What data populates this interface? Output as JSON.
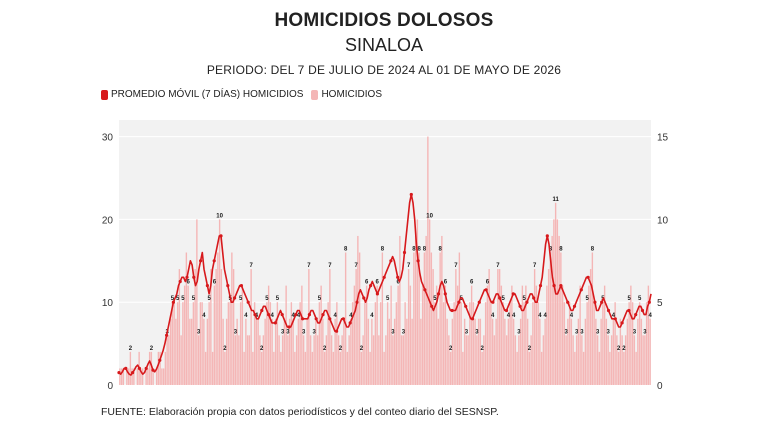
{
  "header": {
    "title": "HOMICIDIOS DOLOSOS",
    "subtitle": "SINALOA",
    "period": "PERIODO: DEL 7 DE JULIO DE 2024 AL 01 DE MAYO DE 2026"
  },
  "legend": {
    "avg_label": "PROMEDIO MÓVIL (7 DÍAS) HOMICIDIOS",
    "daily_label": "HOMICIDIOS"
  },
  "source": "FUENTE: Elaboración propia con datos periodísticos y del conteo diario del SESNSP.",
  "colors": {
    "avg_line": "#d7191c",
    "daily_bars": "#f4b6b6",
    "plot_bg": "#f2f2f2",
    "gridline": "#ffffff"
  },
  "chart_data": {
    "type": "bar",
    "x": {
      "start": "2024-07-07",
      "end": "2026-05-01",
      "ticks_shown": false
    },
    "y_left": {
      "range": [
        0,
        32
      ],
      "ticks": [
        0,
        10,
        20,
        30
      ]
    },
    "y_right": {
      "range": [
        0,
        16
      ],
      "ticks": [
        0,
        5,
        10,
        15
      ]
    },
    "grid": true,
    "legend_position": "top-left",
    "series": [
      {
        "name": "PROMEDIO MÓVIL (7 DÍAS) HOMICIDIOS",
        "type": "line",
        "axis": "left",
        "values": [
          1.5,
          1.3,
          1.6,
          2,
          2,
          1.6,
          1.3,
          1.2,
          1.5,
          1.8,
          2.2,
          2.4,
          2,
          1.6,
          1.3,
          1.5,
          2,
          2.5,
          2.9,
          2.4,
          1.8,
          1.6,
          1.9,
          2.4,
          3,
          3.6,
          4.2,
          5,
          6,
          7,
          8,
          9,
          10,
          10.5,
          11,
          12,
          12.5,
          13,
          13,
          12.5,
          13,
          14,
          15,
          14.5,
          13,
          12,
          12.5,
          14,
          15,
          16,
          14,
          13,
          12,
          11,
          12,
          14,
          15,
          16,
          17,
          18,
          18,
          16,
          14,
          13,
          12,
          11,
          10,
          10,
          10.5,
          11,
          11.5,
          12,
          12,
          11.5,
          11,
          10.5,
          10,
          9.5,
          9,
          9,
          8.5,
          8,
          8,
          8.5,
          9,
          9.5,
          9.5,
          9,
          8.5,
          8,
          7.5,
          7.5,
          7.5,
          8,
          8.5,
          9,
          8.5,
          8,
          7.5,
          7,
          7,
          7,
          7.5,
          8,
          8.5,
          9,
          9,
          8.5,
          8,
          8,
          8,
          8,
          8.5,
          9,
          9,
          8.5,
          8,
          7.5,
          7.5,
          8,
          8.5,
          9,
          9,
          8.5,
          8,
          7.5,
          7,
          6.5,
          6.5,
          7,
          7.5,
          8,
          8,
          7.5,
          7,
          7,
          7.5,
          8,
          8.5,
          9,
          10,
          11,
          11.5,
          11,
          10.5,
          10,
          10.5,
          11.5,
          12,
          12.5,
          12,
          11.5,
          11,
          11.5,
          12,
          12.5,
          13,
          13.5,
          14,
          14.5,
          15,
          15.5,
          15,
          14,
          13,
          12.5,
          13,
          14,
          16,
          18,
          20,
          22,
          23,
          22,
          20,
          17,
          15,
          13.5,
          12.5,
          12,
          11.5,
          11,
          10.5,
          10,
          9.5,
          9,
          9.5,
          10,
          11,
          12,
          12.5,
          12,
          11,
          10,
          9.5,
          9,
          9,
          9,
          9,
          9.5,
          10,
          10.5,
          10.5,
          10,
          9.5,
          9,
          8.5,
          8,
          8,
          8.5,
          9,
          9.5,
          10,
          10.5,
          11,
          11.5,
          11.5,
          11,
          10.5,
          10,
          10,
          10.5,
          11,
          11,
          10.5,
          10,
          9.5,
          9,
          9,
          9.5,
          10,
          10.5,
          11,
          11,
          10.5,
          10,
          9.5,
          9,
          9,
          9.5,
          10,
          10.5,
          11,
          11,
          10.5,
          10,
          10,
          11,
          12,
          13,
          15,
          17,
          18,
          17,
          15,
          13,
          12,
          11,
          11,
          11.5,
          12,
          11.5,
          11,
          10.5,
          10,
          9.5,
          9,
          9,
          9.5,
          10,
          10.5,
          11,
          11.5,
          12,
          12.5,
          13,
          13,
          12.5,
          12,
          11,
          10,
          9,
          9,
          9.5,
          10,
          10.5,
          10,
          9.5,
          9,
          8.5,
          8,
          8,
          8,
          7.5,
          7,
          7,
          7.5,
          8,
          8.5,
          9,
          9,
          8.5,
          8,
          8,
          8.5,
          9,
          9.5,
          9.5,
          9,
          8.5,
          8.5,
          9.5,
          10,
          11
        ]
      },
      {
        "name": "HOMICIDIOS",
        "type": "bar",
        "axis": "right",
        "values": [
          1,
          1,
          1,
          0,
          1,
          1,
          2,
          1,
          1,
          0,
          1,
          2,
          1,
          1,
          0,
          1,
          1,
          2,
          2,
          1,
          0,
          1,
          2,
          2,
          1,
          1,
          2,
          3,
          3,
          4,
          5,
          5,
          4,
          5,
          7,
          3,
          5,
          6,
          8,
          6,
          4,
          4,
          5,
          7,
          10,
          3,
          5,
          5,
          4,
          2,
          4,
          5,
          7,
          2,
          6,
          7,
          8,
          10,
          7,
          4,
          2,
          4,
          5,
          5,
          8,
          7,
          3,
          4,
          3,
          5,
          6,
          2,
          4,
          3,
          3,
          7,
          2,
          5,
          4,
          4,
          3,
          2,
          3,
          4,
          5,
          6,
          5,
          4,
          2,
          4,
          5,
          3,
          2,
          3,
          4,
          6,
          3,
          4,
          5,
          4,
          2,
          3,
          4,
          5,
          6,
          3,
          2,
          4,
          7,
          3,
          2,
          3,
          4,
          3,
          5,
          6,
          4,
          2,
          3,
          5,
          7,
          3,
          2,
          4,
          5,
          3,
          2,
          3,
          4,
          8,
          2,
          3,
          4,
          5,
          6,
          7,
          9,
          8,
          2,
          3,
          5,
          6,
          4,
          2,
          4,
          3,
          5,
          6,
          3,
          5,
          8,
          2,
          3,
          5,
          4,
          6,
          3,
          4,
          5,
          6,
          9,
          3,
          3,
          5,
          4,
          7,
          6,
          4,
          8,
          9,
          10,
          8,
          4,
          6,
          8,
          9,
          15,
          10,
          8,
          7,
          5,
          6,
          4,
          8,
          9,
          5,
          6,
          4,
          3,
          2,
          4,
          5,
          7,
          6,
          8,
          5,
          2,
          4,
          3,
          3,
          5,
          6,
          5,
          4,
          3,
          4,
          4,
          2,
          3,
          5,
          6,
          7,
          5,
          4,
          3,
          4,
          7,
          7,
          6,
          5,
          4,
          3,
          4,
          5,
          6,
          4,
          3,
          2,
          3,
          4,
          6,
          5,
          6,
          4,
          2,
          3,
          5,
          7,
          6,
          5,
          4,
          2,
          3,
          4,
          6,
          7,
          8,
          9,
          10,
          11,
          10,
          9,
          8,
          6,
          5,
          3,
          4,
          5,
          4,
          3,
          2,
          3,
          4,
          6,
          3,
          2,
          4,
          5,
          6,
          7,
          8,
          5,
          4,
          3,
          2,
          4,
          5,
          6,
          4,
          3,
          2,
          3,
          4,
          5,
          3,
          2,
          4,
          3,
          2,
          3,
          4,
          5,
          6,
          5,
          3,
          2,
          4,
          5,
          4,
          3,
          3,
          5,
          6,
          4
        ]
      }
    ],
    "data_labels_shown": true
  }
}
